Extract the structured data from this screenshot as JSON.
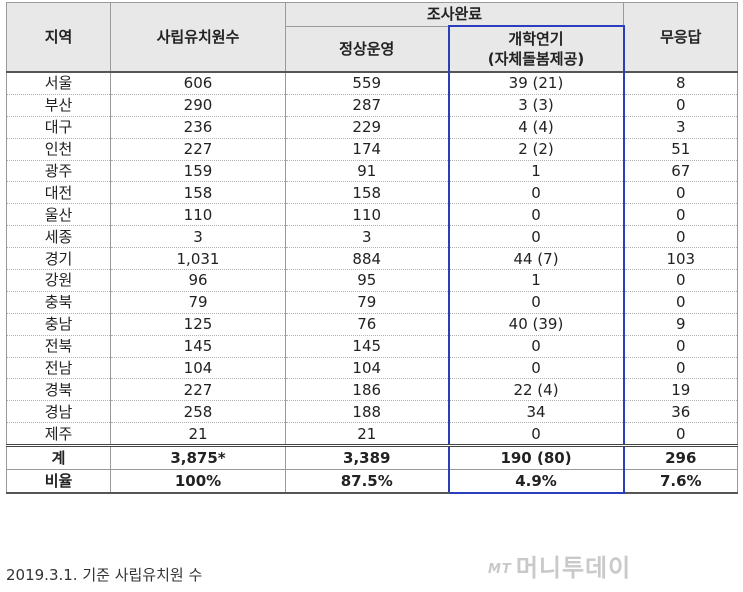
{
  "headers": {
    "region": "지역",
    "private_count": "사립유치원수",
    "survey_done": "조사완료",
    "normal_operation": "정상운영",
    "postponed_line1": "개학연기",
    "postponed_line2": "(자체돌봄제공)",
    "no_response": "무응답"
  },
  "rows": [
    {
      "region": "서울",
      "count": "606",
      "normal": "559",
      "postponed": "39 (21)",
      "no_response": "8"
    },
    {
      "region": "부산",
      "count": "290",
      "normal": "287",
      "postponed": "3 (3)",
      "no_response": "0"
    },
    {
      "region": "대구",
      "count": "236",
      "normal": "229",
      "postponed": "4 (4)",
      "no_response": "3"
    },
    {
      "region": "인천",
      "count": "227",
      "normal": "174",
      "postponed": "2 (2)",
      "no_response": "51"
    },
    {
      "region": "광주",
      "count": "159",
      "normal": "91",
      "postponed": "1",
      "no_response": "67"
    },
    {
      "region": "대전",
      "count": "158",
      "normal": "158",
      "postponed": "0",
      "no_response": "0"
    },
    {
      "region": "울산",
      "count": "110",
      "normal": "110",
      "postponed": "0",
      "no_response": "0"
    },
    {
      "region": "세종",
      "count": "3",
      "normal": "3",
      "postponed": "0",
      "no_response": "0"
    },
    {
      "region": "경기",
      "count": "1,031",
      "normal": "884",
      "postponed": "44 (7)",
      "no_response": "103"
    },
    {
      "region": "강원",
      "count": "96",
      "normal": "95",
      "postponed": "1",
      "no_response": "0"
    },
    {
      "region": "충북",
      "count": "79",
      "normal": "79",
      "postponed": "0",
      "no_response": "0"
    },
    {
      "region": "충남",
      "count": "125",
      "normal": "76",
      "postponed": "40 (39)",
      "no_response": "9"
    },
    {
      "region": "전북",
      "count": "145",
      "normal": "145",
      "postponed": "0",
      "no_response": "0"
    },
    {
      "region": "전남",
      "count": "104",
      "normal": "104",
      "postponed": "0",
      "no_response": "0"
    },
    {
      "region": "경북",
      "count": "227",
      "normal": "186",
      "postponed": "22 (4)",
      "no_response": "19"
    },
    {
      "region": "경남",
      "count": "258",
      "normal": "188",
      "postponed": "34",
      "no_response": "36"
    },
    {
      "region": "제주",
      "count": "21",
      "normal": "21",
      "postponed": "0",
      "no_response": "0"
    }
  ],
  "total": {
    "label": "계",
    "count": "3,875*",
    "normal": "3,389",
    "postponed": "190 (80)",
    "no_response": "296"
  },
  "ratio": {
    "label": "비율",
    "count": "100%",
    "normal": "87.5%",
    "postponed": "4.9%",
    "no_response": "7.6%"
  },
  "footnote": "2019.3.1. 기준 사립유치원 수",
  "watermark": {
    "mark": "MT",
    "text": "머니투데이"
  },
  "colors": {
    "header_bg": "#e8e8e8",
    "highlight_border": "#2a3dbd",
    "grid": "#9a9a9a"
  }
}
